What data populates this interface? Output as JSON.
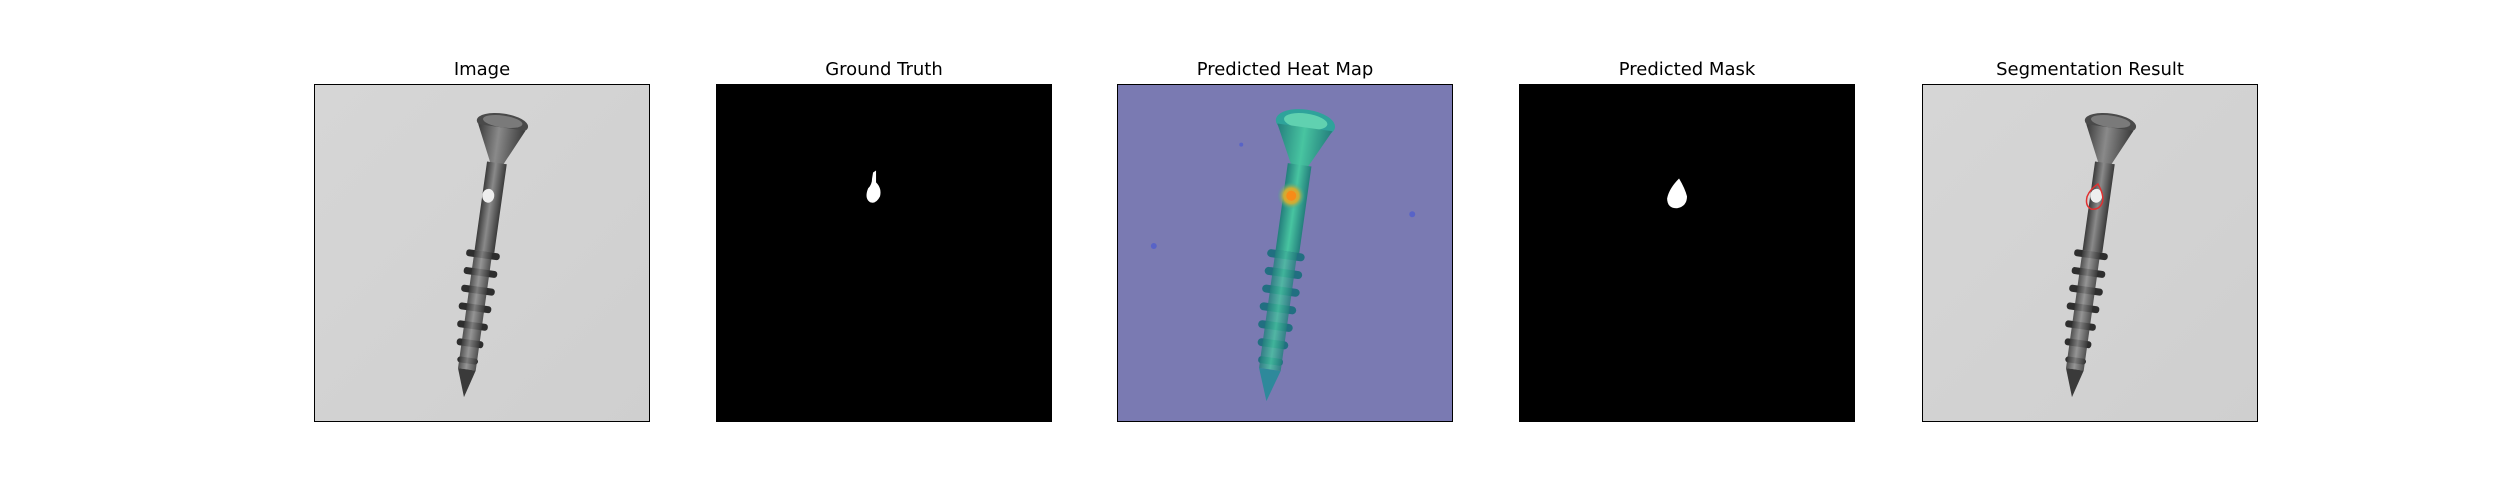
{
  "panels": [
    {
      "id": "image",
      "title": "Image"
    },
    {
      "id": "ground-truth",
      "title": "Ground Truth"
    },
    {
      "id": "heatmap",
      "title": "Predicted Heat Map"
    },
    {
      "id": "predicted-mask",
      "title": "Predicted Mask"
    },
    {
      "id": "segmentation",
      "title": "Segmentation Result"
    }
  ],
  "colors": {
    "image_background": "#d3d3d3",
    "screw_dark": "#3a3a3a",
    "screw_mid": "#6a6a6a",
    "screw_light": "#9a9a9a",
    "mask_background": "#000000",
    "mask_defect": "#ffffff",
    "heatmap_background": "#7b7bb3",
    "heatmap_object": "#2fb29a",
    "heatmap_hot": "#ff9a1a",
    "contour": "#e03030"
  }
}
